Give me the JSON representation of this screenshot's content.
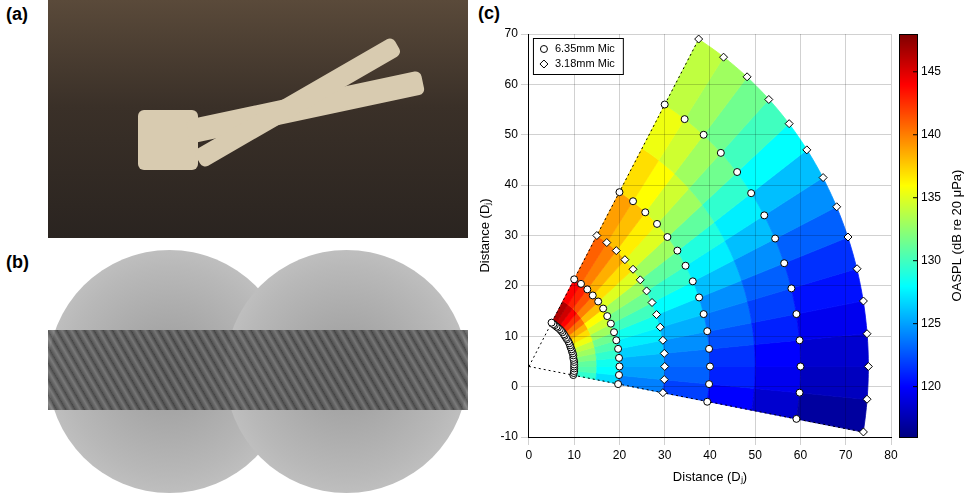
{
  "panel_labels": [
    "(a)",
    "(b)",
    "(c)"
  ],
  "chart_data": {
    "type": "scatter",
    "x_label": "Distance (Dⱼ)",
    "y_label": "Distance (Dⱼ)",
    "xlim": [
      0,
      80
    ],
    "xticks": [
      0,
      10,
      20,
      30,
      40,
      50,
      60,
      70,
      80
    ],
    "ylim": [
      -10,
      70
    ],
    "yticks": [
      -10,
      0,
      10,
      20,
      30,
      40,
      50,
      60,
      70
    ],
    "grid": true,
    "legend": "upper left",
    "series": [
      {
        "name": "6.35mm Mic",
        "marker": "circle",
        "color": "#ffffff",
        "x": [
          9.8,
          9.9,
          10,
          10,
          10,
          10,
          10,
          9.9,
          9.8,
          9.8,
          9.7,
          9.5,
          9.4,
          9.2,
          9.1,
          8.9,
          8.7,
          8.4,
          8.2,
          7.9,
          7.7,
          7.4,
          7.1,
          6.8,
          6.4,
          6.1,
          5.7,
          5.4,
          5,
          19.7,
          19.9,
          20,
          19.9,
          19.7,
          19.3,
          18.8,
          18.1,
          17.3,
          16.4,
          15.3,
          14.1,
          12.9,
          11.5,
          10,
          39.4,
          39.8,
          40,
          39.8,
          39.4,
          38.6,
          37.6,
          36.2,
          34.6,
          32.8,
          30.6,
          28.3,
          25.7,
          23,
          20,
          59.1,
          59.8,
          60,
          59.8,
          59.1,
          58,
          56.4,
          54.4,
          52,
          49.1,
          46,
          42.4,
          38.6,
          34.4,
          30
        ],
        "values": [
          2.3,
          2.7,
          3.1,
          3.6,
          4,
          4.4,
          4.9,
          5.3,
          5.7,
          6.2,
          6.6,
          7,
          7.4,
          7.8,
          8.2,
          8.6,
          9,
          9.4,
          9.7,
          10.1,
          10.4,
          10.8,
          11.1,
          11.4,
          11.7,
          11.9,
          12.2,
          12.4,
          12.7,
          0.5,
          2.3,
          4,
          5.7,
          7.5,
          9.2,
          10.8,
          12.5,
          14,
          15.5,
          16.9,
          18.1,
          19.3,
          20.4,
          21.3,
          -3,
          0.5,
          4,
          7.5,
          11,
          14.4,
          17.7,
          20.9,
          24,
          27,
          29.7,
          32.3,
          34.6,
          36.8,
          38.6,
          -6.4,
          -1.2,
          4,
          9.2,
          14.4,
          19.5,
          24.5,
          29.4,
          34,
          38.4,
          42.6,
          46.4,
          50,
          53.1,
          56
        ]
      },
      {
        "name": "3.18mm Mic",
        "marker": "diamond",
        "color": "#ffffff",
        "x": [
          29.6,
          29.9,
          30,
          29.9,
          29.6,
          29,
          28.2,
          27.2,
          26,
          24.6,
          23,
          21.2,
          19.3,
          17.2,
          15,
          73.9,
          74.7,
          75,
          74.7,
          73.9,
          72.5,
          70.5,
          68,
          65,
          61.4,
          57.5,
          53,
          48.2,
          43,
          37.5
        ],
        "values": [
          -1.2,
          1.4,
          4,
          6.6,
          9.2,
          11.8,
          14.3,
          16.7,
          19,
          21.2,
          23.3,
          25.2,
          27,
          28.6,
          30,
          -9,
          -2.5,
          4,
          10.5,
          17,
          23.4,
          29.7,
          35.7,
          41.5,
          47,
          52.2,
          57,
          61.5,
          65.4,
          69
        ]
      }
    ],
    "field": {
      "origin": [
        0,
        4
      ],
      "radial_edges": [
        10,
        15,
        20,
        30,
        40,
        50,
        60,
        75
      ],
      "angle_edges": [
        -10,
        -5,
        0,
        5,
        10,
        15,
        20,
        25,
        30,
        35,
        40,
        45,
        50,
        55,
        60
      ],
      "values": [
        [
          129.5,
          130.5,
          131,
          132,
          133,
          134,
          135.5,
          137,
          138.5,
          140.5,
          142.5,
          144,
          145.5,
          146.5
        ],
        [
          127,
          128,
          128.5,
          129.5,
          130.5,
          131.5,
          133,
          134.5,
          136,
          138,
          140,
          141.5,
          143,
          144
        ],
        [
          124,
          125,
          125.5,
          126.5,
          127.5,
          128.5,
          130,
          131.5,
          133,
          135,
          137,
          138.5,
          140,
          141
        ],
        [
          122,
          123,
          123.5,
          124.5,
          125.5,
          126.5,
          128,
          129.5,
          131,
          133,
          135,
          136.5,
          138,
          139
        ],
        [
          120,
          121,
          121.5,
          122.5,
          123.5,
          124.5,
          126,
          127.5,
          129,
          131,
          133,
          134.5,
          136,
          137
        ],
        [
          118.5,
          119.5,
          120,
          121,
          122,
          123,
          124.5,
          126,
          127.5,
          129.5,
          131.5,
          133,
          134.5,
          135.5
        ],
        [
          117,
          118,
          118.5,
          119.5,
          120.5,
          121.5,
          123,
          124.5,
          126,
          128,
          130,
          131.5,
          133,
          134
        ]
      ]
    },
    "colorbar": {
      "range": [
        116,
        148
      ],
      "ticks": [
        120,
        125,
        130,
        135,
        140,
        145
      ],
      "label": "OASPL (dB re 20 μPa)"
    }
  }
}
